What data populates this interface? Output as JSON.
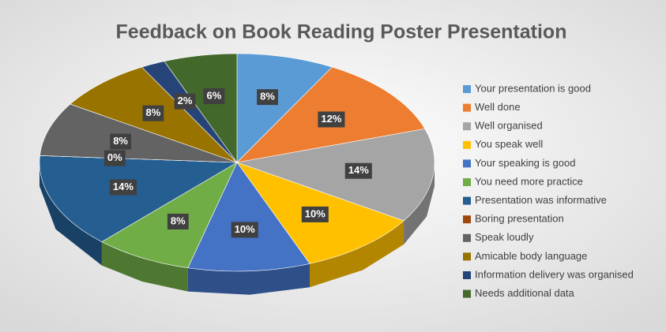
{
  "chart_data": {
    "type": "pie3d",
    "title": "Feedback on Book Reading Poster Presentation",
    "categories": [
      "Your presentation is good",
      "Well done",
      "Well organised",
      "You speak well",
      "Your speaking is good",
      "You need more practice",
      "Presentation was informative",
      "Boring presentation",
      "Speak loudly",
      "Amicable body language",
      "Information delivery was organised",
      "Needs additional data"
    ],
    "values": [
      8,
      12,
      14,
      10,
      10,
      8,
      14,
      0,
      8,
      8,
      2,
      6
    ],
    "value_labels": [
      "8%",
      "12%",
      "14%",
      "10%",
      "10%",
      "8%",
      "14%",
      "0%",
      "8%",
      "8%",
      "2%",
      "6%"
    ],
    "colors": [
      "#5b9bd5",
      "#ed7d31",
      "#a5a5a5",
      "#ffc000",
      "#4472c4",
      "#70ad47",
      "#255e91",
      "#9e480e",
      "#636363",
      "#997300",
      "#264478",
      "#43682b"
    ],
    "legend": "right"
  }
}
